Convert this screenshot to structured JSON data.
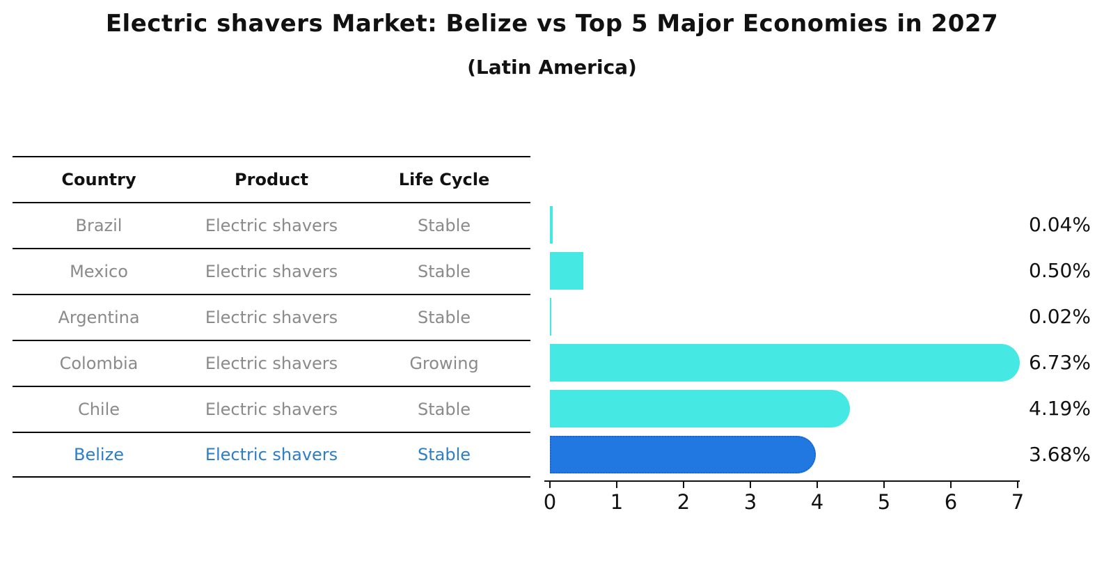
{
  "title": "Electric shavers Market: Belize vs Top 5 Major Economies in 2027",
  "subtitle": "(Latin America)",
  "table": {
    "columns": [
      "Country",
      "Product",
      "Life Cycle"
    ],
    "rows": [
      {
        "country": "Brazil",
        "product": "Electric shavers",
        "life_cycle": "Stable",
        "highlight": false
      },
      {
        "country": "Mexico",
        "product": "Electric shavers",
        "life_cycle": "Stable",
        "highlight": false
      },
      {
        "country": "Argentina",
        "product": "Electric shavers",
        "life_cycle": "Stable",
        "highlight": false
      },
      {
        "country": "Colombia",
        "product": "Electric shavers",
        "life_cycle": "Growing",
        "highlight": false
      },
      {
        "country": "Chile",
        "product": "Electric shavers",
        "life_cycle": "Stable",
        "highlight": false
      },
      {
        "country": "Belize",
        "product": "Electric shavers",
        "life_cycle": "Stable",
        "highlight": true
      }
    ]
  },
  "chart_data": {
    "type": "bar",
    "orientation": "horizontal",
    "title": "Electric shavers Market: Belize vs Top 5 Major Economies in 2027",
    "subtitle": "(Latin America)",
    "categories": [
      "Brazil",
      "Mexico",
      "Argentina",
      "Colombia",
      "Chile",
      "Belize"
    ],
    "values": [
      0.04,
      0.5,
      0.02,
      6.73,
      4.19,
      3.68
    ],
    "value_labels": [
      "0.04%",
      "0.50%",
      "0.02%",
      "6.73%",
      "4.19%",
      "3.68%"
    ],
    "unit": "%",
    "xlim": [
      0,
      7
    ],
    "x_ticks": [
      0,
      1,
      2,
      3,
      4,
      5,
      6,
      7
    ],
    "grid": false,
    "legend": "none",
    "highlight_category": "Belize"
  },
  "colors": {
    "bar": "#45e8e3",
    "highlight_bar": "#2078e0",
    "highlight_text": "#2d7dc7",
    "row_text": "#8a8a8a",
    "axis": "#111111"
  }
}
